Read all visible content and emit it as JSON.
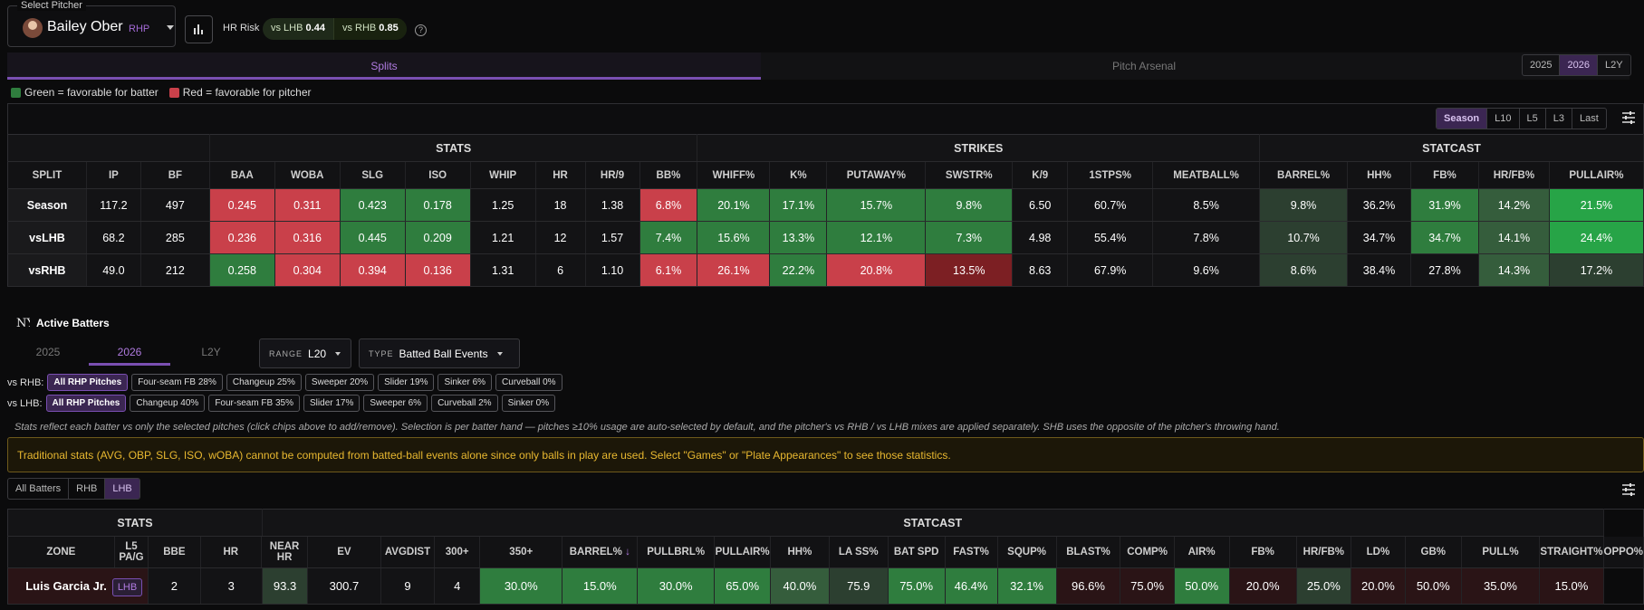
{
  "pitcher": {
    "legend": "Select Pitcher",
    "name": "Bailey Ober",
    "hand": "RHP",
    "hr_risk_label": "HR Risk",
    "vs_lhb_label": "vs LHB",
    "vs_lhb_val": "0.44",
    "vs_rhb_label": "vs RHB",
    "vs_rhb_val": "0.85"
  },
  "tabs": {
    "splits": "Splits",
    "arsenal": "Pitch Arsenal"
  },
  "years": [
    "2025",
    "2026",
    "L2Y"
  ],
  "legend": {
    "green": "Green = favorable for batter",
    "red": "Red = favorable for pitcher"
  },
  "colors": {
    "green": "#2f7d3e",
    "red": "#c9404a",
    "accent": "#7a4fb2"
  },
  "ranges": [
    "Season",
    "L10",
    "L5",
    "L3",
    "Last"
  ],
  "splits": {
    "groups": [
      "STATS",
      "STRIKES",
      "STATCAST"
    ],
    "headers": [
      "SPLIT",
      "IP",
      "BF",
      "BAA",
      "WOBA",
      "SLG",
      "ISO",
      "WHIP",
      "HR",
      "HR/9",
      "BB%",
      "WHIFF%",
      "K%",
      "PUTAWAY%",
      "SWSTR%",
      "K/9",
      "1STPS%",
      "MEATBALL%",
      "BARREL%",
      "HH%",
      "FB%",
      "HR/FB%",
      "PULLAIR%"
    ],
    "rows": [
      [
        "Season",
        "117.2",
        "497",
        "0.245",
        "0.311",
        "0.423",
        "0.178",
        "1.25",
        "18",
        "1.38",
        "6.8%",
        "20.1%",
        "17.1%",
        "15.7%",
        "9.8%",
        "6.50",
        "60.7%",
        "8.5%",
        "9.8%",
        "36.2%",
        "31.9%",
        "14.2%",
        "21.5%"
      ],
      [
        "vsLHB",
        "68.2",
        "285",
        "0.236",
        "0.316",
        "0.445",
        "0.209",
        "1.21",
        "12",
        "1.57",
        "7.4%",
        "15.6%",
        "13.3%",
        "12.1%",
        "7.3%",
        "4.98",
        "55.4%",
        "7.8%",
        "10.7%",
        "34.7%",
        "34.7%",
        "14.1%",
        "24.4%"
      ],
      [
        "vsRHB",
        "49.0",
        "212",
        "0.258",
        "0.304",
        "0.394",
        "0.136",
        "1.31",
        "6",
        "1.10",
        "6.1%",
        "26.1%",
        "22.2%",
        "20.8%",
        "13.5%",
        "8.63",
        "67.9%",
        "9.6%",
        "8.6%",
        "38.4%",
        "27.8%",
        "14.3%",
        "17.2%"
      ]
    ]
  },
  "active": {
    "title": "Active Batters",
    "years": [
      "2025",
      "2026",
      "L2Y"
    ],
    "range_label": "RANGE",
    "range_val": "L20",
    "type_label": "TYPE",
    "type_val": "Batted Ball Events",
    "vs_rhb_label": "vs RHB:",
    "vs_rhb_chips": [
      "All RHP Pitches",
      "Four-seam FB 28%",
      "Changeup 25%",
      "Sweeper 20%",
      "Slider 19%",
      "Sinker 6%",
      "Curveball 0%"
    ],
    "vs_lhb_label": "vs LHB:",
    "vs_lhb_chips": [
      "All RHP Pitches",
      "Changeup 40%",
      "Four-seam FB 35%",
      "Slider 17%",
      "Sweeper 6%",
      "Curveball 2%",
      "Sinker 0%"
    ],
    "note": "Stats reflect each batter vs only the selected pitches (click chips above to add/remove). Selection is per batter hand — pitches ≥10% usage are auto-selected by default, and the pitcher's vs RHB / vs LHB mixes are applied separately. SHB uses the opposite of the pitcher's throwing hand.",
    "warning": "Traditional stats (AVG, OBP, SLG, ISO, wOBA) cannot be computed from batted-ball events alone since only balls in play are used. Select \"Games\" or \"Plate Appearances\" to see those statistics.",
    "filters": [
      "All Batters",
      "RHB",
      "LHB"
    ]
  },
  "batters": {
    "groups": [
      "STATS",
      "STATCAST"
    ],
    "headers": [
      "ZONE",
      "L5 PA/G",
      "BBE",
      "HR",
      "NEAR HR",
      "EV",
      "AVGDIST",
      "300+",
      "350+",
      "BARREL%",
      "PULLBRL%",
      "PULLAIR%",
      "HH%",
      "LA SS%",
      "BAT SPD",
      "FAST%",
      "SQUP%",
      "BLAST%",
      "COMP%",
      "AIR%",
      "FB%",
      "HR/FB%",
      "LD%",
      "GB%",
      "PULL%",
      "STRAIGHT%",
      "OPPO%"
    ],
    "sort_arrow": "↓",
    "rows": [
      {
        "name": "Luis Garcia Jr.",
        "hand": "LHB",
        "cells": [
          "2",
          "3",
          "93.3",
          "300.7",
          "9",
          "4",
          "30.0%",
          "15.0%",
          "30.0%",
          "65.0%",
          "40.0%",
          "75.9",
          "75.0%",
          "46.4%",
          "32.1%",
          "96.6%",
          "75.0%",
          "50.0%",
          "20.0%",
          "25.0%",
          "20.0%",
          "50.0%",
          "35.0%",
          "15.0%"
        ]
      }
    ]
  }
}
